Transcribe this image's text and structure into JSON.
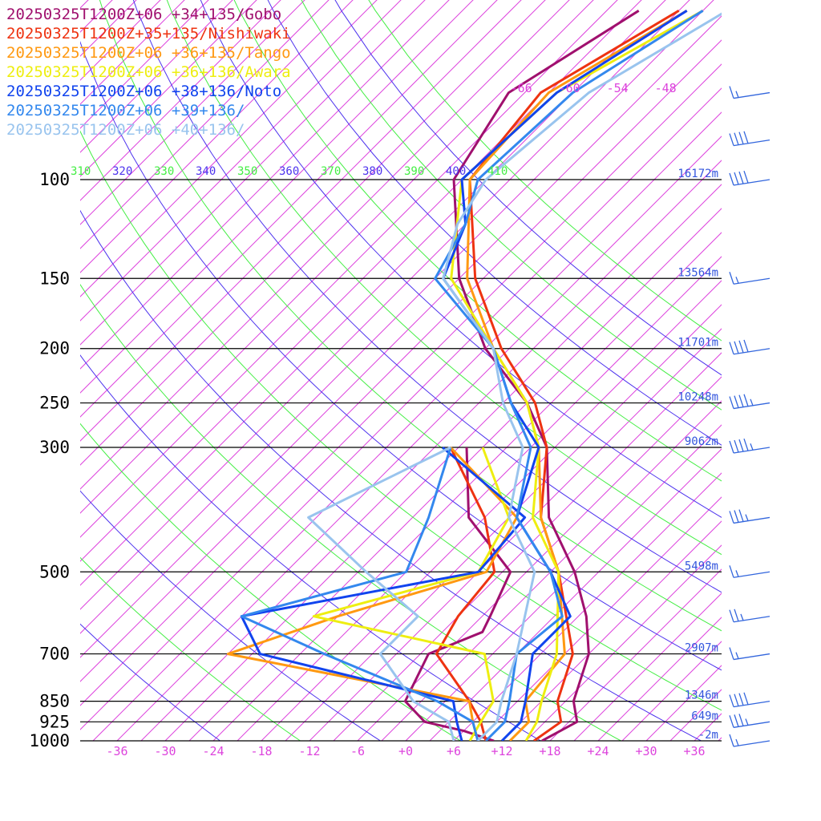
{
  "chart_data": {
    "type": "line",
    "chart_kind": "skew-T log-P sounding",
    "colors": {
      "isotherm": "#dd44dd",
      "dry_adiabat": "#4d33ee",
      "moist_adiabat": "#44ee44",
      "height_label": "#3355dd",
      "barb": "#3366dd"
    },
    "pressure_levels": [
      {
        "p": 100,
        "label": "100",
        "height": "16172m"
      },
      {
        "p": 150,
        "label": "150",
        "height": "13564m"
      },
      {
        "p": 200,
        "label": "200",
        "height": "11701m"
      },
      {
        "p": 250,
        "label": "250",
        "height": "10248m"
      },
      {
        "p": 300,
        "label": "300",
        "height": "9062m"
      },
      {
        "p": 500,
        "label": "500",
        "height": "5498m"
      },
      {
        "p": 700,
        "label": "700",
        "height": "2907m"
      },
      {
        "p": 850,
        "label": "850",
        "height": "1346m"
      },
      {
        "p": 925,
        "label": "925",
        "height": "649m"
      },
      {
        "p": 1000,
        "label": "1000",
        "height": "-2m"
      }
    ],
    "x_ticks": [
      "-36",
      "-30",
      "-24",
      "-18",
      "-12",
      "-6",
      "+0",
      "+6",
      "+12",
      "+18",
      "+24",
      "+30",
      "+36"
    ],
    "upper_temp_labels": [
      "-66",
      "-60",
      "-54",
      "-48"
    ],
    "theta_labels": [
      {
        "text": "310",
        "color": "#44ee44"
      },
      {
        "text": "320",
        "color": "#4d33ee"
      },
      {
        "text": "330",
        "color": "#44ee44"
      },
      {
        "text": "340",
        "color": "#4d33ee"
      },
      {
        "text": "350",
        "color": "#44ee44"
      },
      {
        "text": "360",
        "color": "#4d33ee"
      },
      {
        "text": "370",
        "color": "#44ee44"
      },
      {
        "text": "380",
        "color": "#4d33ee"
      },
      {
        "text": "390",
        "color": "#44ee44"
      },
      {
        "text": "400",
        "color": "#4d33ee"
      },
      {
        "text": "410",
        "color": "#44ee44"
      }
    ],
    "series": [
      {
        "name": "20250325T1200Z+06 +34+135/Gobo",
        "color": "#a0106e",
        "temperature": [
          [
            1000,
            17
          ],
          [
            925,
            19
          ],
          [
            850,
            16
          ],
          [
            700,
            12
          ],
          [
            600,
            7
          ],
          [
            500,
            0
          ],
          [
            400,
            -10
          ],
          [
            300,
            -19
          ],
          [
            250,
            -27
          ],
          [
            200,
            -39
          ],
          [
            150,
            -51
          ],
          [
            100,
            -64
          ],
          [
            70,
            -68
          ],
          [
            50,
            -62
          ]
        ],
        "dewpoint": [
          [
            1000,
            11
          ],
          [
            960,
            6
          ],
          [
            925,
            0
          ],
          [
            850,
            -5
          ],
          [
            700,
            -8
          ],
          [
            640,
            -4
          ],
          [
            600,
            -5
          ],
          [
            500,
            -8
          ],
          [
            400,
            -20
          ],
          [
            300,
            -29
          ]
        ]
      },
      {
        "name": "20250325T1200Z+35+135/Nishiwaki",
        "color": "#ee3311",
        "temperature": [
          [
            1000,
            16
          ],
          [
            925,
            17
          ],
          [
            850,
            14
          ],
          [
            700,
            10
          ],
          [
            500,
            -2
          ],
          [
            400,
            -11
          ],
          [
            300,
            -19
          ],
          [
            250,
            -26
          ],
          [
            200,
            -37
          ],
          [
            150,
            -49
          ],
          [
            100,
            -62
          ],
          [
            70,
            -64
          ],
          [
            50,
            -57
          ]
        ],
        "dewpoint": [
          [
            1000,
            10
          ],
          [
            925,
            7
          ],
          [
            850,
            3
          ],
          [
            700,
            -7
          ],
          [
            600,
            -9
          ],
          [
            500,
            -10
          ],
          [
            400,
            -18
          ],
          [
            300,
            -31
          ]
        ]
      },
      {
        "name": "20250325T1200Z+06 +36+135/Tango",
        "color": "#ff9911",
        "temperature": [
          [
            1000,
            13
          ],
          [
            925,
            13
          ],
          [
            850,
            10
          ],
          [
            700,
            9
          ],
          [
            500,
            -2
          ],
          [
            400,
            -11
          ],
          [
            300,
            -20
          ],
          [
            250,
            -27
          ],
          [
            200,
            -38
          ],
          [
            150,
            -50
          ],
          [
            100,
            -62
          ],
          [
            70,
            -63
          ],
          [
            50,
            -56
          ]
        ],
        "dewpoint": [
          [
            1000,
            9
          ],
          [
            925,
            6
          ],
          [
            850,
            3
          ],
          [
            700,
            -33
          ],
          [
            600,
            -24
          ],
          [
            500,
            -11
          ],
          [
            400,
            -14
          ],
          [
            300,
            -31
          ]
        ]
      },
      {
        "name": "20250325T1200Z+06 +36+136/Awara",
        "color": "#eeee11",
        "temperature": [
          [
            1000,
            15
          ],
          [
            925,
            14
          ],
          [
            850,
            12
          ],
          [
            700,
            8
          ],
          [
            500,
            -2
          ],
          [
            400,
            -12
          ],
          [
            300,
            -20
          ],
          [
            250,
            -27
          ],
          [
            200,
            -38
          ],
          [
            150,
            -52
          ],
          [
            100,
            -63
          ],
          [
            70,
            -62
          ],
          [
            50,
            -54
          ]
        ],
        "dewpoint": [
          [
            1000,
            8
          ],
          [
            925,
            7
          ],
          [
            850,
            6
          ],
          [
            700,
            -1
          ],
          [
            600,
            -27
          ],
          [
            500,
            -12
          ],
          [
            400,
            -15
          ],
          [
            300,
            -27
          ]
        ]
      },
      {
        "name": "20250325T1200Z+06 +38+136/Noto",
        "color": "#1144ee",
        "temperature": [
          [
            1000,
            12
          ],
          [
            925,
            12
          ],
          [
            850,
            10
          ],
          [
            700,
            5
          ],
          [
            600,
            5
          ],
          [
            500,
            -3
          ],
          [
            400,
            -14
          ],
          [
            300,
            -20
          ],
          [
            250,
            -29
          ],
          [
            200,
            -38
          ],
          [
            150,
            -53
          ],
          [
            120,
            -57
          ],
          [
            100,
            -63
          ],
          [
            70,
            -62
          ],
          [
            50,
            -56
          ]
        ],
        "dewpoint": [
          [
            1000,
            7
          ],
          [
            925,
            4
          ],
          [
            850,
            1
          ],
          [
            700,
            -29
          ],
          [
            600,
            -36
          ],
          [
            500,
            -12
          ],
          [
            400,
            -13
          ],
          [
            300,
            -32
          ]
        ]
      },
      {
        "name": "20250325T1200Z+06 +39+136/",
        "color": "#3388ee",
        "temperature": [
          [
            1000,
            10
          ],
          [
            925,
            10
          ],
          [
            850,
            8
          ],
          [
            700,
            3
          ],
          [
            600,
            4
          ],
          [
            500,
            -3
          ],
          [
            400,
            -14
          ],
          [
            300,
            -21
          ],
          [
            250,
            -29
          ],
          [
            200,
            -38
          ],
          [
            150,
            -54
          ],
          [
            120,
            -57
          ],
          [
            100,
            -61
          ],
          [
            70,
            -60
          ],
          [
            50,
            -54
          ]
        ],
        "dewpoint": [
          [
            1000,
            9
          ],
          [
            925,
            6
          ],
          [
            850,
            -1
          ],
          [
            700,
            -21
          ],
          [
            600,
            -36
          ],
          [
            500,
            -21
          ],
          [
            400,
            -25
          ],
          [
            300,
            -31
          ]
        ]
      },
      {
        "name": "20250325T1200Z+06 +40+136/",
        "color": "#99c4ee",
        "temperature": [
          [
            1000,
            9
          ],
          [
            925,
            9
          ],
          [
            850,
            7
          ],
          [
            700,
            3
          ],
          [
            500,
            -5
          ],
          [
            400,
            -15
          ],
          [
            300,
            -22
          ],
          [
            250,
            -30
          ],
          [
            200,
            -38
          ],
          [
            150,
            -53
          ],
          [
            120,
            -58
          ],
          [
            100,
            -60
          ],
          [
            70,
            -58
          ],
          [
            50,
            -51
          ]
        ],
        "dewpoint": [
          [
            1000,
            6
          ],
          [
            925,
            3
          ],
          [
            850,
            -4
          ],
          [
            700,
            -14
          ],
          [
            600,
            -14
          ],
          [
            500,
            -26
          ],
          [
            400,
            -40
          ],
          [
            300,
            -31
          ]
        ]
      }
    ],
    "wind_barbs": [
      {
        "p": 70,
        "speed_kt": 15
      },
      {
        "p": 85,
        "speed_kt": 40
      },
      {
        "p": 100,
        "speed_kt": 40
      },
      {
        "p": 150,
        "speed_kt": 15
      },
      {
        "p": 200,
        "speed_kt": 40
      },
      {
        "p": 250,
        "speed_kt": 45
      },
      {
        "p": 300,
        "speed_kt": 45
      },
      {
        "p": 400,
        "speed_kt": 35
      },
      {
        "p": 500,
        "speed_kt": 15
      },
      {
        "p": 600,
        "speed_kt": 25
      },
      {
        "p": 700,
        "speed_kt": 15
      },
      {
        "p": 850,
        "speed_kt": 40
      },
      {
        "p": 925,
        "speed_kt": 35
      },
      {
        "p": 1000,
        "speed_kt": 15
      }
    ]
  }
}
